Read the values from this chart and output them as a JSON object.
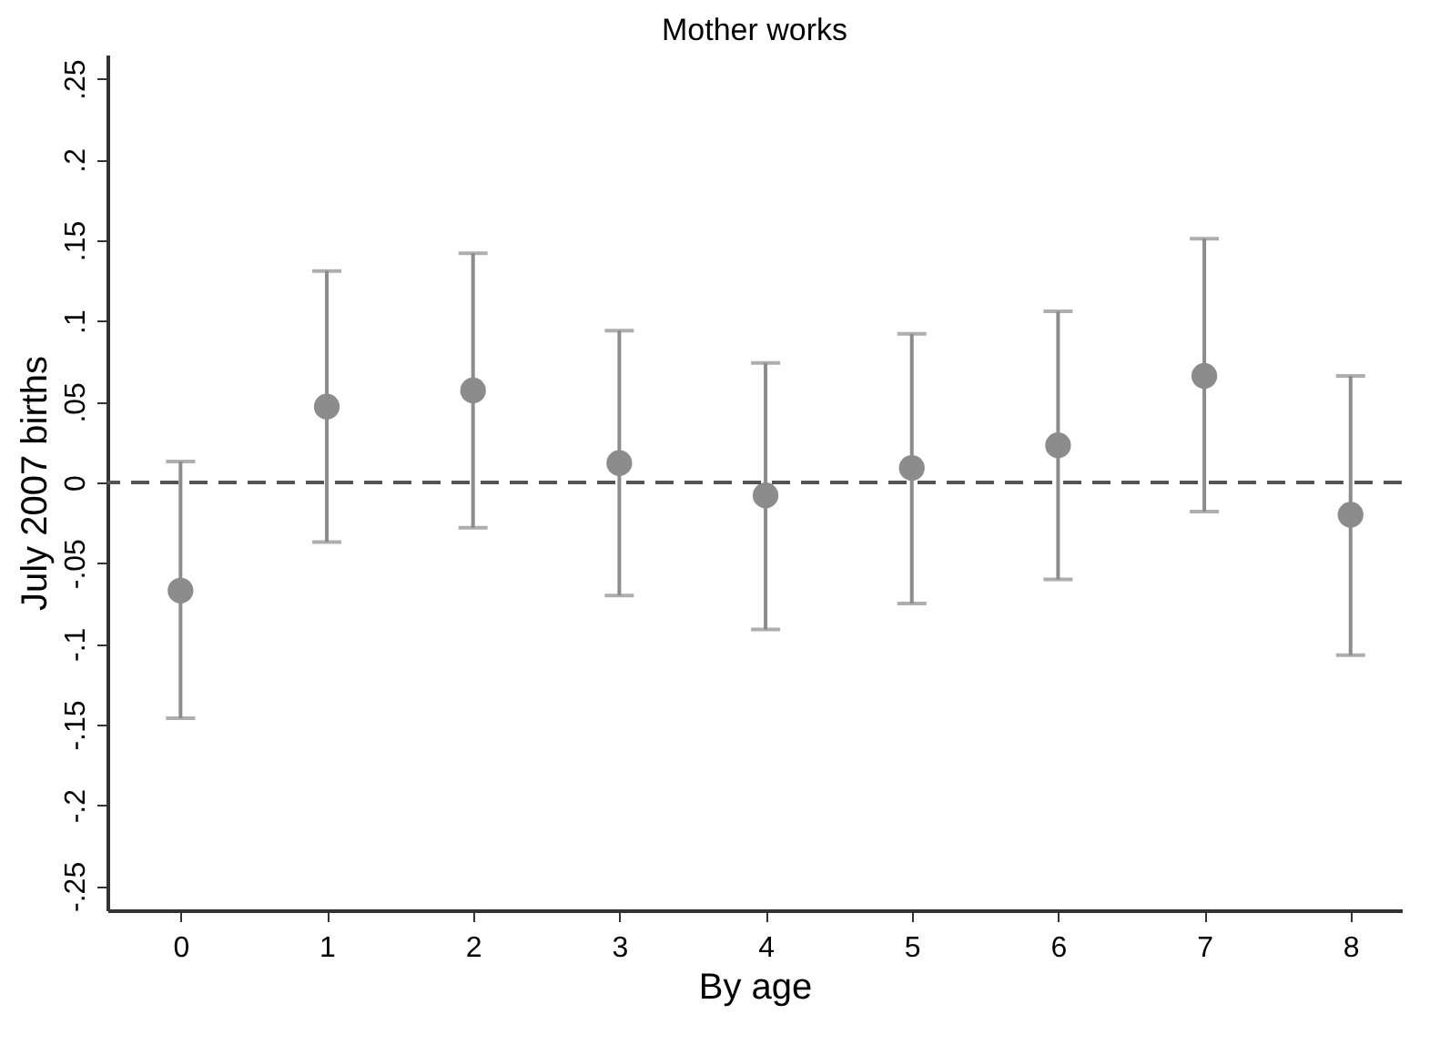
{
  "chart_data": {
    "type": "scatter",
    "title": "Mother works",
    "xlabel": "By age",
    "ylabel": "July 2007 births",
    "x": [
      0,
      1,
      2,
      3,
      4,
      5,
      6,
      7,
      8
    ],
    "series": [
      {
        "color": "#8c8c8c",
        "values": [
          -0.067,
          0.047,
          0.057,
          0.012,
          -0.008,
          0.009,
          0.023,
          0.066,
          -0.02
        ],
        "errors": [
          [
            -0.146,
            0.013
          ],
          [
            -0.037,
            0.131
          ],
          [
            -0.028,
            0.142
          ],
          [
            -0.07,
            0.094
          ],
          [
            -0.091,
            0.074
          ],
          [
            -0.075,
            0.092
          ],
          [
            -0.06,
            0.106
          ],
          [
            -0.018,
            0.151
          ],
          [
            -0.107,
            0.066
          ]
        ]
      }
    ],
    "marker": "circle",
    "grid": false,
    "xlim": [
      -0.5,
      8.35
    ],
    "xticks": [
      0,
      1,
      2,
      3,
      4,
      5,
      6,
      7,
      8
    ],
    "ylim": [
      -0.265,
      0.265
    ],
    "yticks": [
      {
        "value": -0.25,
        "label": "-.25"
      },
      {
        "value": -0.2,
        "label": "-.2"
      },
      {
        "value": -0.15,
        "label": "-.15"
      },
      {
        "value": -0.1,
        "label": "-.1"
      },
      {
        "value": -0.05,
        "label": "-.05"
      },
      0,
      {
        "value": 0.05,
        "label": ".05"
      },
      {
        "value": 0.1,
        "label": ".1"
      },
      {
        "value": 0.15,
        "label": ".15"
      },
      {
        "value": 0.2,
        "label": ".2"
      },
      {
        "value": 0.25,
        "label": ".25"
      }
    ],
    "ref_lines": [
      {
        "axis": "y",
        "value": 0,
        "color": "#555555",
        "line_style": "dashed"
      }
    ]
  }
}
